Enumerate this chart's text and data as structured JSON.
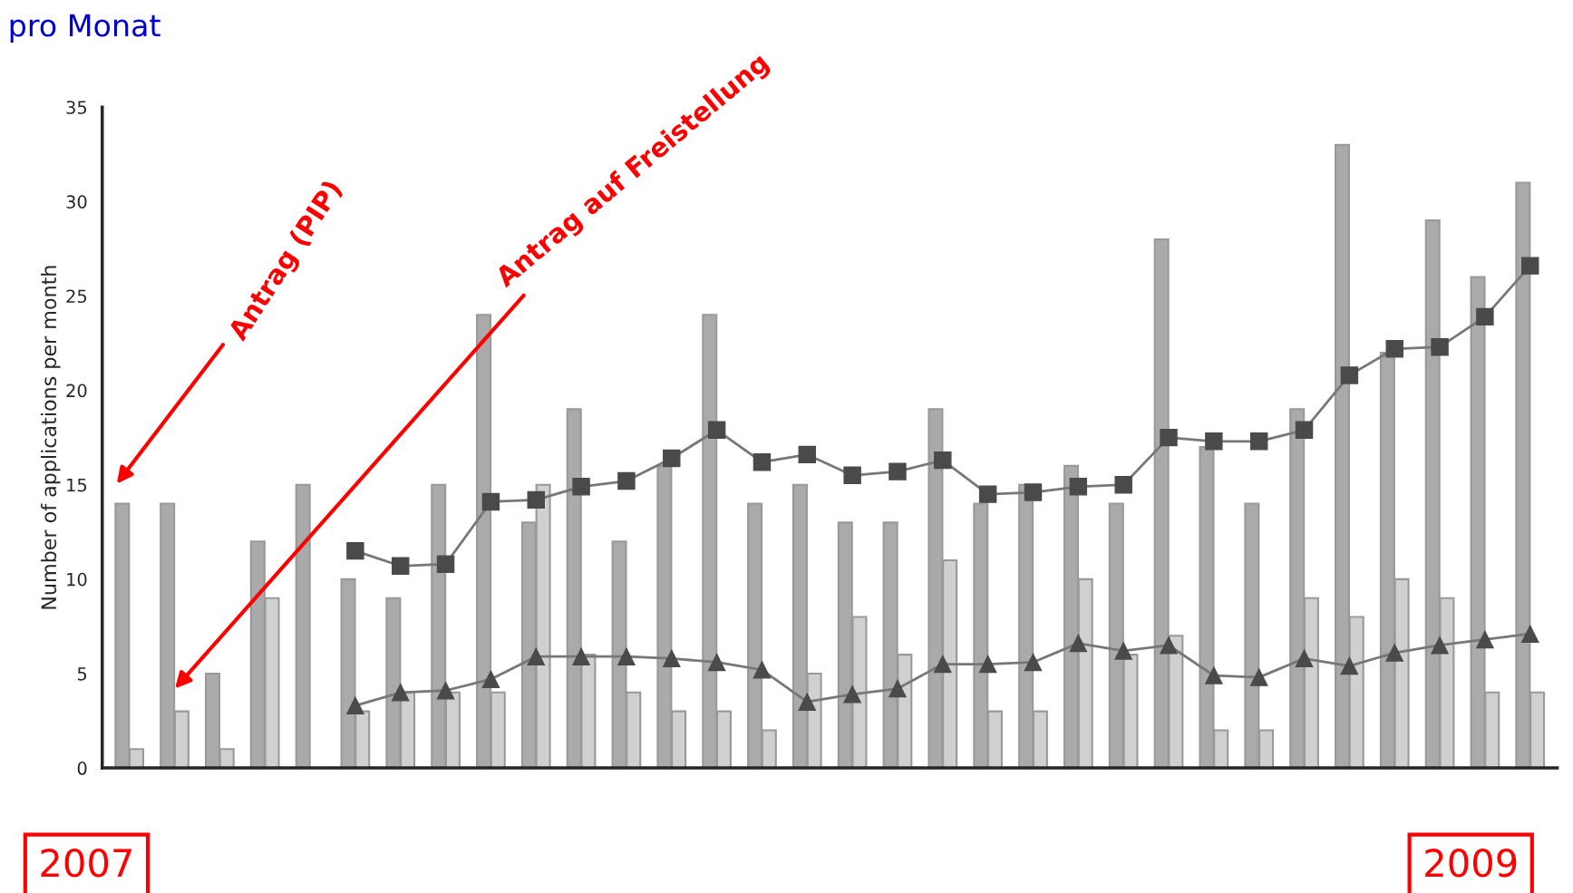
{
  "chart_data": {
    "type": "bar",
    "title": "pro Monat",
    "ylabel": "Number of applications per month",
    "categories": [
      null,
      null,
      null,
      null,
      null,
      null,
      null,
      null,
      null,
      null,
      null,
      null,
      null,
      null,
      null,
      null,
      null,
      null,
      null,
      null,
      null,
      null,
      null,
      null,
      null,
      null,
      null,
      null,
      null,
      null,
      null,
      null
    ],
    "series": [
      {
        "type": "bar",
        "color": "#aaaaaa",
        "values": [
          14,
          14,
          5,
          12,
          15,
          10,
          9,
          15,
          24,
          13,
          19,
          12,
          16,
          24,
          14,
          15,
          13,
          13,
          19,
          14,
          15,
          16,
          14,
          28,
          17,
          14,
          19,
          33,
          22,
          29,
          26,
          31
        ]
      },
      {
        "type": "bar",
        "color": "#d0d0d0",
        "values": [
          1,
          3,
          1,
          9,
          null,
          3,
          4,
          4,
          4,
          15,
          6,
          4,
          3,
          3,
          2,
          5,
          8,
          6,
          11,
          3,
          3,
          10,
          6,
          7,
          2,
          2,
          9,
          8,
          10,
          9,
          4,
          4
        ]
      },
      {
        "type": "line",
        "color": "#4a4a4a",
        "marker": "square",
        "values": [
          null,
          null,
          null,
          null,
          null,
          11.5,
          10.7,
          10.8,
          14.1,
          14.2,
          14.9,
          15.2,
          16.4,
          17.9,
          16.2,
          16.6,
          15.5,
          15.7,
          16.3,
          14.5,
          14.6,
          14.9,
          15.0,
          17.5,
          17.3,
          17.3,
          17.9,
          20.8,
          22.2,
          22.3,
          23.9,
          26.6
        ]
      },
      {
        "type": "line",
        "color": "#4a4a4a",
        "marker": "triangle",
        "values": [
          null,
          null,
          null,
          null,
          null,
          3.3,
          4.0,
          4.1,
          4.7,
          5.9,
          5.9,
          5.9,
          5.8,
          5.6,
          5.2,
          3.5,
          3.9,
          4.2,
          5.5,
          5.5,
          5.6,
          6.6,
          6.2,
          6.5,
          4.9,
          4.8,
          5.8,
          5.4,
          6.1,
          6.5,
          6.8,
          7.1
        ]
      }
    ],
    "ylim": [
      0,
      35
    ],
    "yticks": [
      0,
      5,
      10,
      15,
      20,
      25,
      30,
      35
    ],
    "grid": false,
    "legend": false,
    "annotations": [
      "Antrag (PIP)",
      "Antrag auf Freistellung",
      "2007",
      "2009"
    ]
  }
}
